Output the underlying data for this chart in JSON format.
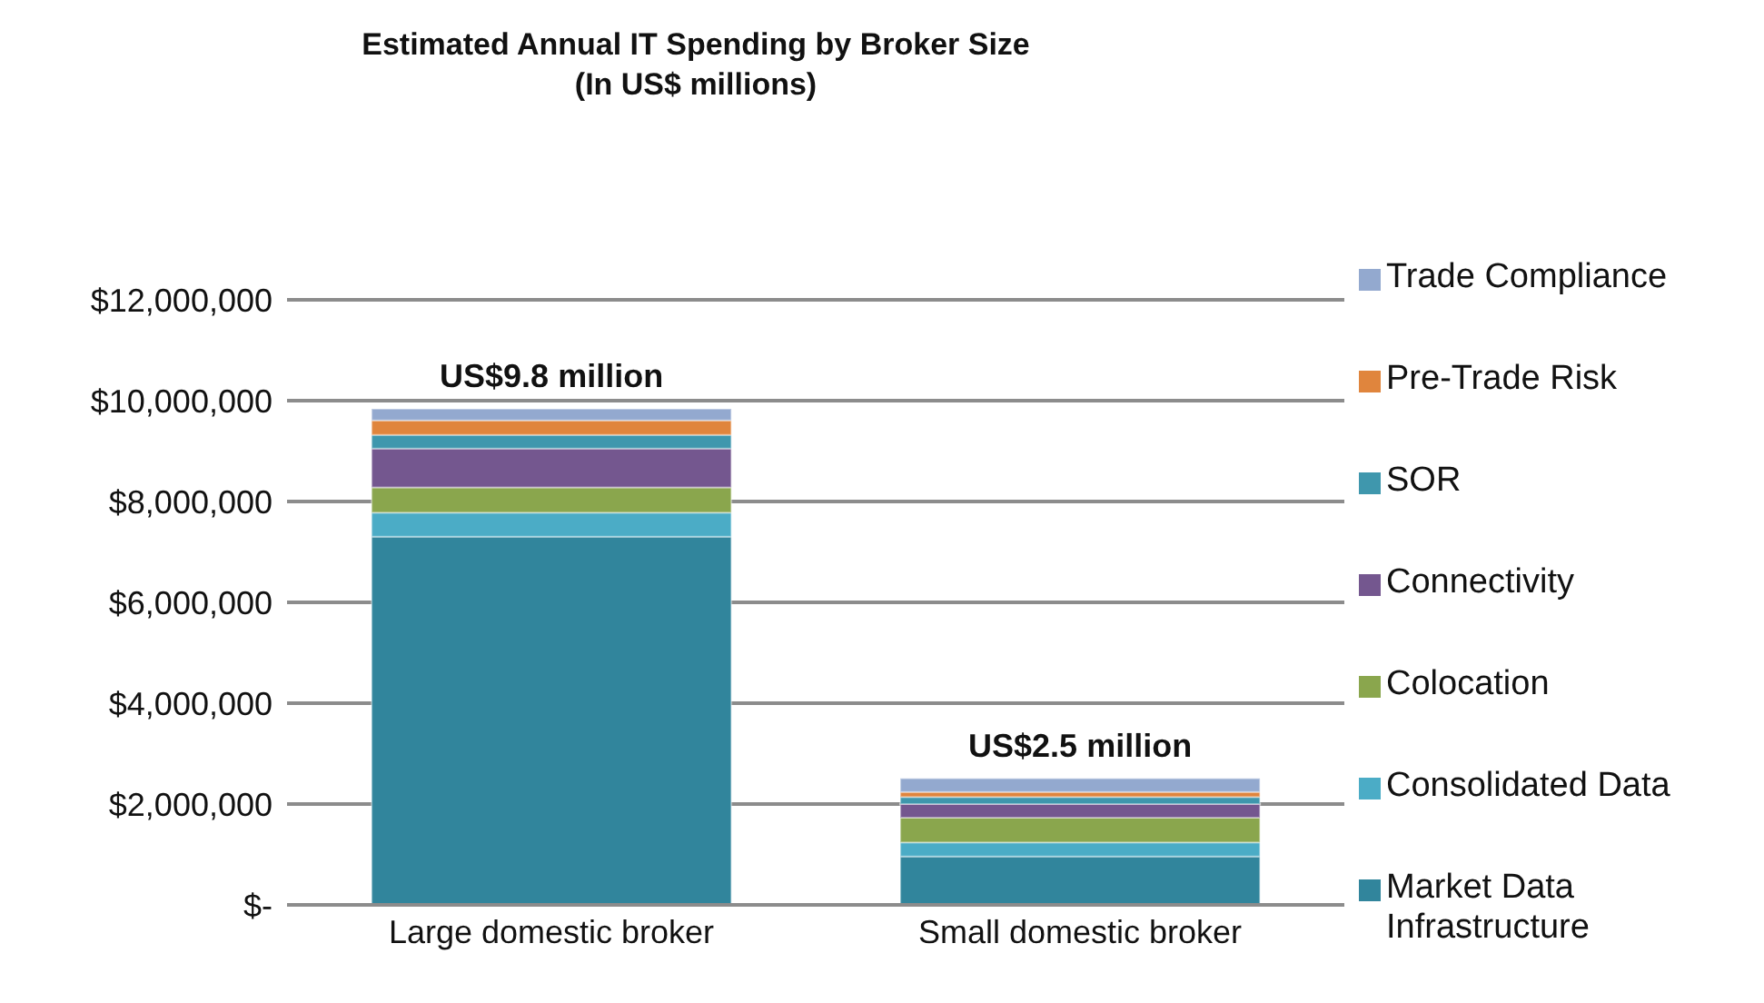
{
  "chart_data": {
    "type": "bar",
    "title": "Estimated Annual IT Spending by Broker Size",
    "subtitle": "(In US$ millions)",
    "categories": [
      "Large domestic broker",
      "Small domestic broker"
    ],
    "stacked": true,
    "series": [
      {
        "name": "Market Data Infrastructure",
        "color": "#31859c",
        "values": [
          7300000,
          960000
        ]
      },
      {
        "name": "Consolidated Data",
        "color": "#4bacc6",
        "values": [
          480000,
          280000
        ]
      },
      {
        "name": "Colocation",
        "color": "#8aa64d",
        "values": [
          500000,
          490000
        ]
      },
      {
        "name": "Connectivity",
        "color": "#74578f",
        "values": [
          770000,
          270000
        ]
      },
      {
        "name": "SOR",
        "color": "#3f97ad",
        "values": [
          270000,
          140000
        ]
      },
      {
        "name": "Pre-Trade Risk",
        "color": "#e0853d",
        "values": [
          290000,
          100000
        ]
      },
      {
        "name": "Trade Compliance",
        "color": "#93a9cf",
        "values": [
          230000,
          270000
        ]
      }
    ],
    "totals": [
      "US$9.8 million",
      "US$2.5 million"
    ],
    "ylim": [
      0,
      12000000
    ],
    "yticks": [
      {
        "value": 0,
        "label": "$-"
      },
      {
        "value": 2000000,
        "label": "$2,000,000"
      },
      {
        "value": 4000000,
        "label": "$4,000,000"
      },
      {
        "value": 6000000,
        "label": "$6,000,000"
      },
      {
        "value": 8000000,
        "label": "$8,000,000"
      },
      {
        "value": 10000000,
        "label": "$10,000,000"
      },
      {
        "value": 12000000,
        "label": "$12,000,000"
      }
    ],
    "grid": "y",
    "legend": "right"
  }
}
